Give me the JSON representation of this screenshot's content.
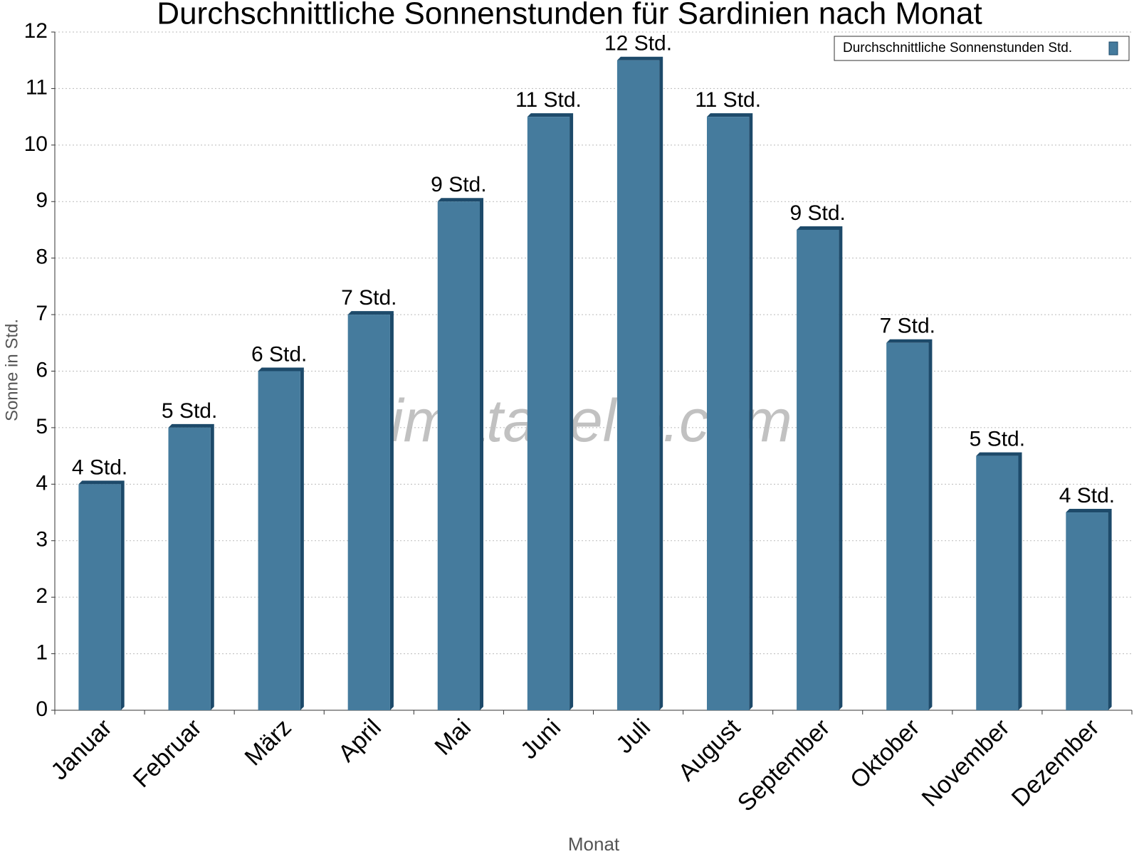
{
  "chart_data": {
    "type": "bar",
    "title": "Durchschnittliche Sonnenstunden für Sardinien nach Monat",
    "x_label": "Monat",
    "y_label": "Sonne in Std.",
    "watermark": "klimatabelle.com",
    "categories": [
      "Januar",
      "Februar",
      "März",
      "April",
      "Mai",
      "Juni",
      "Juli",
      "August",
      "September",
      "Oktober",
      "November",
      "Dezember"
    ],
    "series": [
      {
        "name": "Durchschnittliche Sonnenstunden Std.",
        "color": "#457b9d",
        "values": [
          4,
          5,
          6,
          7,
          9,
          10.5,
          11.5,
          10.5,
          8.5,
          6.5,
          4.5,
          3.5
        ],
        "value_labels": [
          "4 Std.",
          "5 Std.",
          "6 Std.",
          "7 Std.",
          "9 Std.",
          "11 Std.",
          "12 Std.",
          "11 Std.",
          "9 Std.",
          "7 Std.",
          "5 Std.",
          "4 Std."
        ]
      }
    ],
    "ylim": [
      0,
      12
    ],
    "yticks": [
      0,
      1,
      2,
      3,
      4,
      5,
      6,
      7,
      8,
      9,
      10,
      11,
      12
    ],
    "grid": true,
    "legend": "top-right"
  }
}
